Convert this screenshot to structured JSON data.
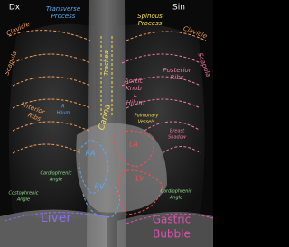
{
  "header": {
    "left": "Dx",
    "right": "Sin"
  },
  "labels": {
    "transverse_process": [
      "Transverse",
      "Process"
    ],
    "spinous_process": [
      "Spinous",
      "Process"
    ],
    "clavicle_right": "Clavicle",
    "clavicle_left": "Clavicle",
    "trachea": "Trachea",
    "scapula_right": "Scapula",
    "scapula_left": "Scapula",
    "posterior_ribs": [
      "Posterior",
      "Ribs"
    ],
    "aortic_knob": [
      "Aortic",
      "Knob"
    ],
    "hilum_left": [
      "L",
      "Hilum"
    ],
    "hilum_right": [
      "R",
      "Hilum"
    ],
    "anterior_ribs": [
      "Anterior",
      "Ribs"
    ],
    "carina": "Carina",
    "pulmonary_vessels": [
      "Pulmonary",
      "Vessels"
    ],
    "breast_shadow": [
      "Breast",
      "Shadow"
    ],
    "ra": "RA",
    "la": "LA",
    "rv": "RV",
    "lv": "LV",
    "cardiophrenic_right": [
      "Cardiophrenic",
      "Angle"
    ],
    "cardiophrenic_left": [
      "Cardiophrenic",
      "Angle"
    ],
    "costophrenic_right": [
      "Costophrenic",
      "Angle"
    ],
    "liver": "Liver",
    "gastric_bubble": [
      "Gastric",
      "Bubble"
    ]
  }
}
